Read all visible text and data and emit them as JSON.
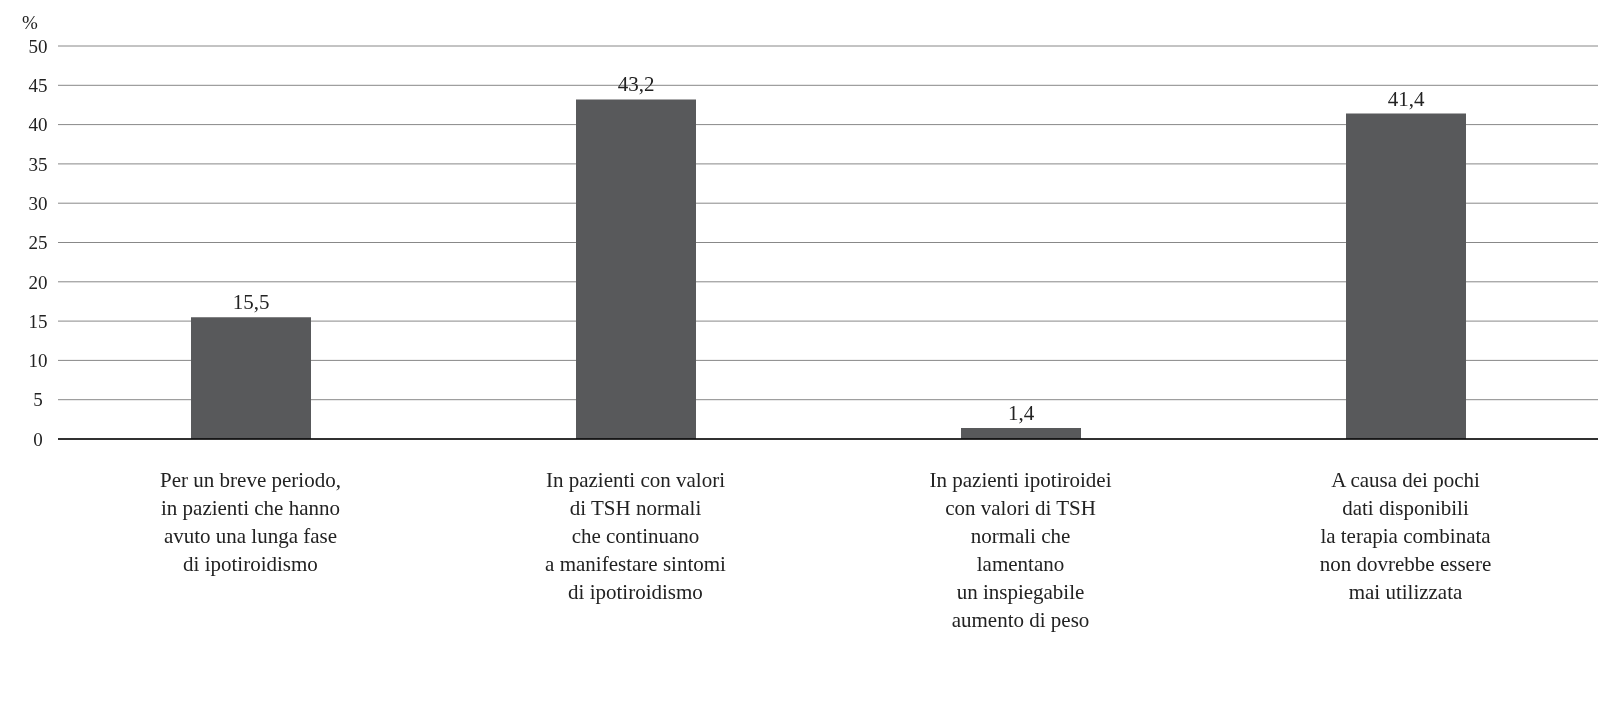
{
  "chart_data": {
    "type": "bar",
    "ylabel": "%",
    "categories": [
      "Per un breve periodo,\nin pazienti che hanno\navuto una lunga fase\ndi ipotiroidismo",
      "In pazienti con valori\ndi TSH normali\nche continuano\na manifestare sintomi\ndi ipotiroidismo",
      "In pazienti ipotiroidei\ncon valori di TSH\nnormali che\nlamentano\nun inspiegabile\naumento di peso",
      "A causa dei pochi\ndati disponibili\nla terapia combinata\nnon dovrebbe essere\nmai utilizzata"
    ],
    "values": [
      15.5,
      43.2,
      1.4,
      41.4
    ],
    "value_labels": [
      "15,5",
      "43,2",
      "1,4",
      "41,4"
    ],
    "color": "#58595b",
    "ylim": [
      0,
      50
    ],
    "yticks": [
      0,
      5,
      10,
      15,
      20,
      25,
      30,
      35,
      40,
      45,
      50
    ],
    "grid": "y"
  }
}
